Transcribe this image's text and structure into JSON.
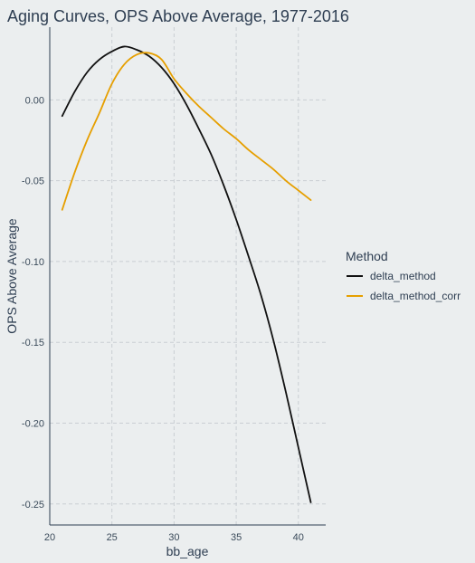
{
  "chart_data": {
    "type": "line",
    "title": "Aging Curves, OPS Above Average, 1977-2016",
    "xlabel": "bb_age",
    "ylabel": "OPS Above Average",
    "xlim": [
      20,
      42.2
    ],
    "ylim": [
      -0.263,
      0.045
    ],
    "x_ticks": [
      20,
      25,
      30,
      35,
      40
    ],
    "y_ticks": [
      0.0,
      -0.05,
      -0.1,
      -0.15,
      -0.2,
      -0.25
    ],
    "y_tick_labels": [
      "0.00",
      "-0.05",
      "-0.10",
      "-0.15",
      "-0.20",
      "-0.25"
    ],
    "grid": true,
    "legend_position": "right",
    "legend_title": "Method",
    "series": [
      {
        "name": "delta_method",
        "color": "#111111",
        "x": [
          21,
          22,
          23,
          24,
          25,
          26,
          27,
          28,
          29,
          30,
          31,
          32,
          33,
          34,
          35,
          36,
          37,
          38,
          39,
          40,
          41
        ],
        "y": [
          -0.01,
          0.005,
          0.017,
          0.025,
          0.03,
          0.033,
          0.031,
          0.027,
          0.02,
          0.01,
          -0.003,
          -0.018,
          -0.034,
          -0.053,
          -0.074,
          -0.097,
          -0.121,
          -0.149,
          -0.181,
          -0.215,
          -0.249
        ]
      },
      {
        "name": "delta_method_corr",
        "color": "#e69f00",
        "x": [
          21,
          22,
          23,
          24,
          25,
          26,
          27,
          28,
          29,
          30,
          31,
          32,
          33,
          34,
          35,
          36,
          37,
          38,
          39,
          40,
          41
        ],
        "y": [
          -0.068,
          -0.045,
          -0.025,
          -0.008,
          0.01,
          0.022,
          0.028,
          0.029,
          0.025,
          0.013,
          0.004,
          -0.004,
          -0.011,
          -0.018,
          -0.024,
          -0.031,
          -0.037,
          -0.043,
          -0.05,
          -0.056,
          -0.062
        ]
      }
    ]
  }
}
